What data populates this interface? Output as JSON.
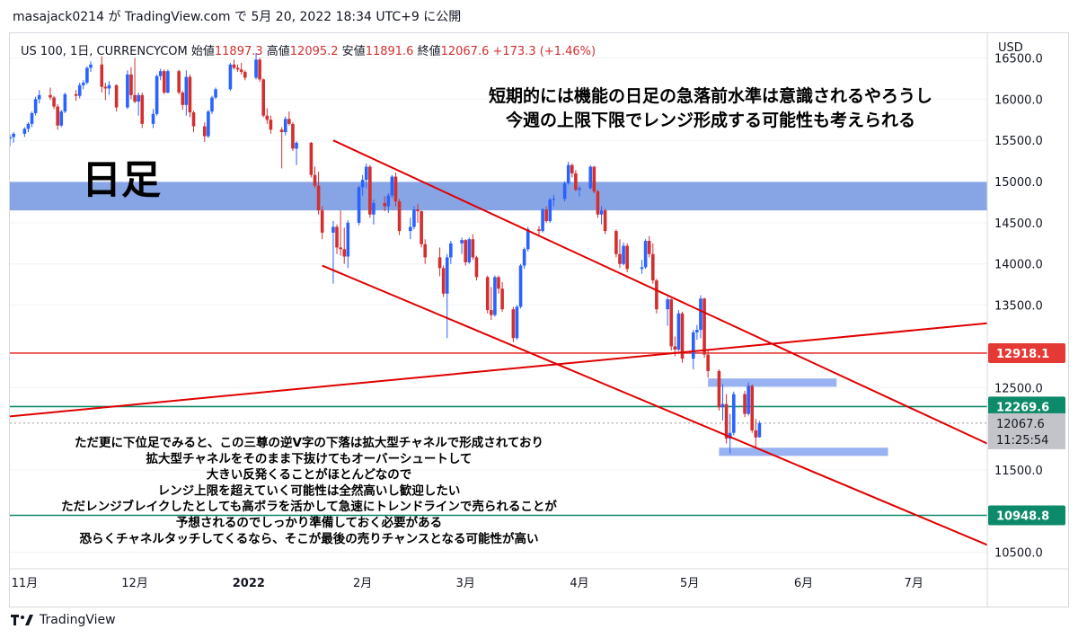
{
  "header": {
    "share_line": "masajack0214 が TradingView.com で 5月 20, 2022 18:34 UTC+9 に公開"
  },
  "footer": {
    "brand": "TradingView"
  },
  "chart_data": {
    "type": "candlestick",
    "symbol_line": "US 100, 1日, CURRENCYCOM",
    "ohlc": {
      "open_label": "始値",
      "open": "11897.3",
      "high_label": "高値",
      "high": "12095.2",
      "low_label": "安値",
      "low": "11891.6",
      "close_label": "終値",
      "close": "12067.6",
      "change": "+173.3 (+1.46%)"
    },
    "currency": "USD",
    "ylim": [
      10300,
      16800
    ],
    "y_ticks": [
      "16500.0",
      "16000.0",
      "15500.0",
      "15000.0",
      "14500.0",
      "14000.0",
      "13500.0",
      "12500.0",
      "11500.0",
      "10500.0"
    ],
    "y_tick_values": [
      16500,
      16000,
      15500,
      15000,
      14500,
      14000,
      13500,
      12500,
      11500,
      10500
    ],
    "x_ticks": [
      "11月",
      "12月",
      "2022",
      "2月",
      "3月",
      "4月",
      "5月",
      "6月",
      "7月"
    ],
    "x_tick_dates": [
      "2021-11-01",
      "2021-12-01",
      "2022-01-01",
      "2022-02-01",
      "2022-03-01",
      "2022-04-01",
      "2022-05-01",
      "2022-06-01",
      "2022-07-01"
    ],
    "x_range": [
      "2021-10-28",
      "2022-07-21"
    ],
    "up_color": "#2962ff",
    "down_color": "#d32f2f",
    "candles": [
      [
        "2021-10-28",
        15520,
        15570,
        15430,
        15540
      ],
      [
        "2021-10-29",
        15540,
        15600,
        15470,
        15580
      ],
      [
        "2021-11-01",
        15580,
        15660,
        15540,
        15640
      ],
      [
        "2021-11-02",
        15640,
        15720,
        15600,
        15700
      ],
      [
        "2021-11-03",
        15700,
        15850,
        15660,
        15830
      ],
      [
        "2021-11-04",
        15830,
        16030,
        15800,
        16000
      ],
      [
        "2021-11-05",
        16000,
        16110,
        15950,
        16050
      ],
      [
        "2021-11-08",
        16050,
        16140,
        15990,
        16020
      ],
      [
        "2021-11-09",
        16020,
        16040,
        15880,
        15910
      ],
      [
        "2021-11-10",
        15910,
        15940,
        15630,
        15680
      ],
      [
        "2021-11-11",
        15680,
        15870,
        15660,
        15850
      ],
      [
        "2021-11-12",
        15850,
        16080,
        15830,
        16060
      ],
      [
        "2021-11-15",
        16060,
        16110,
        15980,
        16040
      ],
      [
        "2021-11-16",
        16040,
        16200,
        16010,
        16170
      ],
      [
        "2021-11-17",
        16170,
        16230,
        16120,
        16200
      ],
      [
        "2021-11-18",
        16200,
        16400,
        16180,
        16380
      ],
      [
        "2021-11-19",
        16380,
        16460,
        16330,
        16420
      ],
      [
        "2021-11-22",
        16420,
        16520,
        16080,
        16150
      ],
      [
        "2021-11-23",
        16150,
        16200,
        15990,
        16130
      ],
      [
        "2021-11-24",
        16130,
        16220,
        16050,
        16170
      ],
      [
        "2021-11-26",
        16170,
        16180,
        15850,
        15900
      ],
      [
        "2021-11-29",
        15900,
        16350,
        15880,
        16300
      ],
      [
        "2021-11-30",
        16300,
        16390,
        16000,
        16050
      ],
      [
        "2021-12-01",
        16050,
        16500,
        15950,
        15970
      ],
      [
        "2021-12-02",
        15970,
        16080,
        15800,
        16050
      ],
      [
        "2021-12-03",
        16050,
        16080,
        15650,
        15700
      ],
      [
        "2021-12-06",
        15700,
        15880,
        15650,
        15820
      ],
      [
        "2021-12-07",
        15820,
        16300,
        15800,
        16280
      ],
      [
        "2021-12-08",
        16280,
        16370,
        16230,
        16340
      ],
      [
        "2021-12-09",
        16340,
        16360,
        16060,
        16080
      ],
      [
        "2021-12-10",
        16080,
        16360,
        16070,
        16340
      ],
      [
        "2021-12-13",
        16340,
        16360,
        16060,
        16080
      ],
      [
        "2021-12-14",
        16080,
        16100,
        15870,
        15930
      ],
      [
        "2021-12-15",
        15930,
        16350,
        15800,
        16270
      ],
      [
        "2021-12-16",
        16270,
        16300,
        15780,
        15840
      ],
      [
        "2021-12-17",
        15840,
        15860,
        15600,
        15670
      ],
      [
        "2021-12-20",
        15670,
        15720,
        15480,
        15550
      ],
      [
        "2021-12-21",
        15550,
        15870,
        15530,
        15850
      ],
      [
        "2021-12-22",
        15850,
        16040,
        15820,
        16020
      ],
      [
        "2021-12-23",
        16020,
        16140,
        16000,
        16120
      ],
      [
        "2021-12-27",
        16120,
        16440,
        16100,
        16420
      ],
      [
        "2021-12-28",
        16420,
        16480,
        16360,
        16380
      ],
      [
        "2021-12-29",
        16380,
        16420,
        16330,
        16360
      ],
      [
        "2021-12-30",
        16360,
        16440,
        16300,
        16330
      ],
      [
        "2021-12-31",
        16330,
        16350,
        16230,
        16260
      ],
      [
        "2022-01-03",
        16260,
        16560,
        16240,
        16480
      ],
      [
        "2022-01-04",
        16480,
        16500,
        16210,
        16240
      ],
      [
        "2022-01-05",
        16240,
        16250,
        15780,
        15800
      ],
      [
        "2022-01-06",
        15800,
        15890,
        15700,
        15750
      ],
      [
        "2022-01-07",
        15750,
        15800,
        15580,
        15630
      ],
      [
        "2022-01-10",
        15630,
        15660,
        15160,
        15600
      ],
      [
        "2022-01-11",
        15600,
        15790,
        15560,
        15760
      ],
      [
        "2022-01-12",
        15760,
        15850,
        15680,
        15700
      ],
      [
        "2022-01-13",
        15700,
        15720,
        15370,
        15400
      ],
      [
        "2022-01-14",
        15400,
        15490,
        15200,
        15470
      ],
      [
        "2022-01-18",
        15470,
        15480,
        15050,
        15080
      ],
      [
        "2022-01-19",
        15080,
        15180,
        14920,
        14950
      ],
      [
        "2022-01-20",
        14950,
        15120,
        14600,
        14650
      ],
      [
        "2022-01-21",
        14650,
        14700,
        14300,
        14380
      ],
      [
        "2022-01-24",
        14380,
        14520,
        13760,
        14450
      ],
      [
        "2022-01-25",
        14450,
        14480,
        14120,
        14200
      ],
      [
        "2022-01-26",
        14200,
        14650,
        14100,
        14180
      ],
      [
        "2022-01-27",
        14180,
        14440,
        14000,
        14090
      ],
      [
        "2022-01-28",
        14090,
        14530,
        13950,
        14500
      ],
      [
        "2022-01-31",
        14500,
        14950,
        14470,
        14930
      ],
      [
        "2022-02-01",
        14930,
        15080,
        14830,
        15020
      ],
      [
        "2022-02-02",
        15020,
        15220,
        14920,
        15180
      ],
      [
        "2022-02-03",
        15180,
        15200,
        14560,
        14600
      ],
      [
        "2022-02-04",
        14600,
        14780,
        14480,
        14740
      ],
      [
        "2022-02-07",
        14740,
        14820,
        14640,
        14700
      ],
      [
        "2022-02-08",
        14700,
        14860,
        14620,
        14830
      ],
      [
        "2022-02-09",
        14830,
        15080,
        14800,
        15060
      ],
      [
        "2022-02-10",
        15060,
        15110,
        14700,
        14760
      ],
      [
        "2022-02-11",
        14760,
        14790,
        14350,
        14400
      ],
      [
        "2022-02-14",
        14400,
        14560,
        14300,
        14450
      ],
      [
        "2022-02-15",
        14450,
        14700,
        14420,
        14660
      ],
      [
        "2022-02-16",
        14660,
        14730,
        14500,
        14640
      ],
      [
        "2022-02-17",
        14640,
        14650,
        14200,
        14240
      ],
      [
        "2022-02-18",
        14240,
        14300,
        14000,
        14080
      ],
      [
        "2022-02-22",
        14080,
        14200,
        13850,
        13950
      ],
      [
        "2022-02-23",
        13950,
        13980,
        13600,
        13640
      ],
      [
        "2022-02-24",
        13640,
        14120,
        13100,
        14080
      ],
      [
        "2022-02-25",
        14080,
        14280,
        14000,
        14250
      ],
      [
        "2022-02-28",
        14250,
        14320,
        14120,
        14290
      ],
      [
        "2022-03-01",
        14290,
        14300,
        13980,
        14020
      ],
      [
        "2022-03-02",
        14020,
        14320,
        14000,
        14300
      ],
      [
        "2022-03-03",
        14300,
        14360,
        14050,
        14080
      ],
      [
        "2022-03-04",
        14080,
        14100,
        13800,
        13840
      ],
      [
        "2022-03-07",
        13840,
        13860,
        13400,
        13440
      ],
      [
        "2022-03-08",
        13440,
        13720,
        13320,
        13380
      ],
      [
        "2022-03-09",
        13380,
        13860,
        13360,
        13840
      ],
      [
        "2022-03-10",
        13840,
        13860,
        13640,
        13700
      ],
      [
        "2022-03-11",
        13700,
        13780,
        13420,
        13450
      ],
      [
        "2022-03-14",
        13450,
        13480,
        13050,
        13100
      ],
      [
        "2022-03-15",
        13100,
        13500,
        13080,
        13480
      ],
      [
        "2022-03-16",
        13480,
        14000,
        13460,
        13980
      ],
      [
        "2022-03-17",
        13980,
        14200,
        13940,
        14180
      ],
      [
        "2022-03-18",
        14180,
        14450,
        14150,
        14420
      ],
      [
        "2022-03-21",
        14420,
        14460,
        14350,
        14400
      ],
      [
        "2022-03-22",
        14400,
        14680,
        14380,
        14660
      ],
      [
        "2022-03-23",
        14660,
        14700,
        14500,
        14520
      ],
      [
        "2022-03-24",
        14520,
        14800,
        14500,
        14780
      ],
      [
        "2022-03-25",
        14780,
        14840,
        14700,
        14790
      ],
      [
        "2022-03-28",
        14790,
        15000,
        14760,
        14980
      ],
      [
        "2022-03-29",
        14980,
        15240,
        14960,
        15200
      ],
      [
        "2022-03-30",
        15200,
        15220,
        15050,
        15100
      ],
      [
        "2022-03-31",
        15100,
        15140,
        14880,
        14900
      ],
      [
        "2022-04-01",
        14900,
        14950,
        14820,
        14920
      ],
      [
        "2022-04-04",
        14920,
        15200,
        14900,
        15180
      ],
      [
        "2022-04-05",
        15180,
        15190,
        14860,
        14880
      ],
      [
        "2022-04-06",
        14880,
        14900,
        14560,
        14600
      ],
      [
        "2022-04-07",
        14600,
        14700,
        14480,
        14650
      ],
      [
        "2022-04-08",
        14650,
        14670,
        14360,
        14400
      ],
      [
        "2022-04-11",
        14400,
        14420,
        14080,
        14120
      ],
      [
        "2022-04-12",
        14120,
        14300,
        13950,
        14000
      ],
      [
        "2022-04-13",
        14000,
        14260,
        13980,
        14220
      ],
      [
        "2022-04-14",
        14220,
        14250,
        13900,
        13940
      ],
      [
        "2022-04-18",
        13940,
        14050,
        13880,
        13960
      ],
      [
        "2022-04-19",
        13960,
        14300,
        13940,
        14280
      ],
      [
        "2022-04-20",
        14280,
        14340,
        14080,
        14120
      ],
      [
        "2022-04-21",
        14120,
        14250,
        13760,
        13800
      ],
      [
        "2022-04-22",
        13800,
        13820,
        13400,
        13450
      ],
      [
        "2022-04-25",
        13450,
        13600,
        13250,
        13570
      ],
      [
        "2022-04-26",
        13570,
        13580,
        12950,
        13000
      ],
      [
        "2022-04-27",
        13000,
        13120,
        12880,
        12960
      ],
      [
        "2022-04-28",
        12960,
        13440,
        12940,
        13400
      ],
      [
        "2022-04-29",
        13400,
        13420,
        12800,
        12850
      ],
      [
        "2022-05-02",
        12850,
        13200,
        12720,
        13170
      ],
      [
        "2022-05-03",
        13170,
        13260,
        13080,
        13200
      ],
      [
        "2022-05-04",
        13200,
        13620,
        13100,
        13580
      ],
      [
        "2022-05-05",
        13580,
        13590,
        12860,
        12900
      ],
      [
        "2022-05-06",
        12900,
        12960,
        12620,
        12700
      ],
      [
        "2022-05-09",
        12700,
        12720,
        12220,
        12260
      ],
      [
        "2022-05-10",
        12260,
        12540,
        12100,
        12300
      ],
      [
        "2022-05-11",
        12300,
        12420,
        11820,
        11880
      ],
      [
        "2022-05-12",
        11880,
        12180,
        11700,
        11950
      ],
      [
        "2022-05-13",
        11950,
        12450,
        11920,
        12420
      ],
      [
        "2022-05-16",
        12420,
        12460,
        12140,
        12180
      ],
      [
        "2022-05-17",
        12180,
        12560,
        12160,
        12520
      ],
      [
        "2022-05-18",
        12520,
        12540,
        11950,
        11980
      ],
      [
        "2022-05-19",
        11980,
        12120,
        11770,
        11894
      ],
      [
        "2022-05-20",
        11897.3,
        12095.2,
        11891.6,
        12067.6
      ]
    ],
    "title": "日足",
    "annotation_top": [
      "短期的には機能の日足の急落前水準は意識されるやろうし",
      "今週の上限下限でレンジ形成する可能性も考えられる"
    ],
    "annotation_bottom": [
      "ただ更に下位足でみると、この三尊の逆V字の下落は拡大型チャネルで形成されており",
      "拡大型チャネルをそのまま下抜けてもオーバーシュートして",
      "大きい反発くることがほとんどなので",
      "レンジ上限を超えていく可能性は全然高いし歓迎したい",
      "ただレンジブレイクしたとしても高ボラを活かして急速にトレンドラインで売られることが",
      "予想されるのでしっかり準備しておく必要がある",
      "恐らくチャネルタッチしてくるなら、そこが最後の売りチャンスとなる可能性が高い"
    ],
    "zones": [
      {
        "from": "2021-10-28",
        "to": "2022-07-21",
        "y_low": 14650,
        "y_high": 15000,
        "color": "#7a9be2"
      },
      {
        "from": "2022-05-06",
        "to": "2022-06-10",
        "y_low": 12510,
        "y_high": 12610,
        "color": "#8eaaf0"
      },
      {
        "from": "2022-05-09",
        "to": "2022-06-24",
        "y_low": 11670,
        "y_high": 11770,
        "color": "#8eaaf0"
      }
    ],
    "hlines": [
      {
        "value": 12918.1,
        "label": "12918.1",
        "color": "#e53935"
      },
      {
        "value": 12269.6,
        "label": "12269.6",
        "color": "#0d8a6a"
      },
      {
        "value": 10948.8,
        "label": "10948.8",
        "color": "#0d8a6a"
      }
    ],
    "trendlines": [
      {
        "from": [
          "2022-01-24",
          15500
        ],
        "to": [
          "2022-07-21",
          11820
        ],
        "color": "#e00000"
      },
      {
        "from": [
          "2022-01-21",
          13980
        ],
        "to": [
          "2022-07-21",
          10590
        ],
        "color": "#e00000"
      },
      {
        "from": [
          "2021-10-28",
          12150
        ],
        "to": [
          "2022-07-21",
          13280
        ],
        "color": "#e00000"
      }
    ],
    "last_price": {
      "value": "12067.6",
      "countdown": "11:25:54",
      "y": 12067.6
    }
  }
}
